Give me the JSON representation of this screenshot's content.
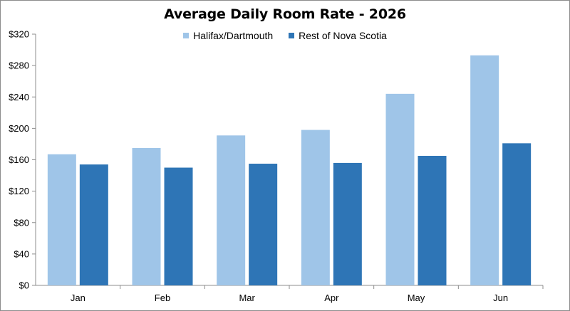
{
  "chart_data": {
    "type": "bar",
    "title": "Average Daily Room Rate - 2026",
    "categories": [
      "Jan",
      "Feb",
      "Mar",
      "Apr",
      "May",
      "Jun"
    ],
    "series": [
      {
        "name": "Halifax/Dartmouth",
        "color": "#9fc5e8",
        "values": [
          167,
          175,
          191,
          198,
          244,
          293
        ]
      },
      {
        "name": "Rest of Nova Scotia",
        "color": "#2e75b6",
        "values": [
          154,
          150,
          155,
          156,
          165,
          181
        ]
      }
    ],
    "ylim": [
      0,
      320
    ],
    "yticks": [
      0,
      40,
      80,
      120,
      160,
      200,
      240,
      280,
      320
    ],
    "ytick_labels": [
      "$0",
      "$40",
      "$80",
      "$120",
      "$160",
      "$200",
      "$240",
      "$280",
      "$320"
    ],
    "legend_position": "top",
    "grid": false
  }
}
